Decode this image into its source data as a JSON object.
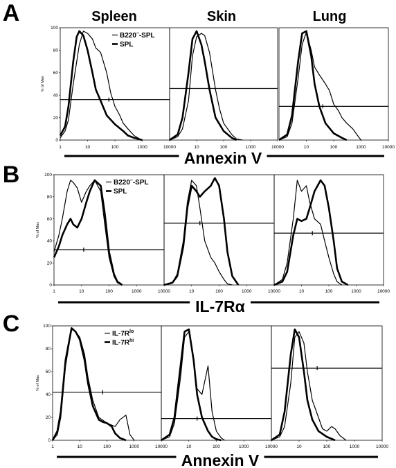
{
  "column_titles": [
    "Spleen",
    "Skin",
    "Lung"
  ],
  "chart_data": [
    {
      "panel": "A",
      "type": "line",
      "x_scale": "log",
      "xlabel": "Annexin V",
      "ylabel": "% of Max",
      "x_ticks": [
        "1",
        "10",
        "100",
        "1000",
        "10000"
      ],
      "y_ticks": [
        "0",
        "20",
        "40",
        "60",
        "80",
        "100"
      ],
      "ylim": [
        0,
        100
      ],
      "legend": [
        {
          "label": "B220",
          "sup": "–",
          "suffix": "-SPL",
          "weight": "thin"
        },
        {
          "label": "SPL",
          "weight": "thick"
        }
      ],
      "subplots": [
        {
          "title": "Spleen",
          "series": [
            {
              "name": "B220–-SPL",
              "weight": "thin",
              "x": [
                1,
                1.5,
                2,
                3,
                5,
                7,
                10,
                15,
                20,
                30,
                50,
                70,
                100,
                150,
                200,
                300,
                500,
                800,
                1000
              ],
              "y": [
                2,
                8,
                18,
                50,
                85,
                97,
                95,
                90,
                82,
                78,
                60,
                42,
                30,
                22,
                15,
                10,
                4,
                1,
                0
              ]
            },
            {
              "name": "SPL",
              "weight": "thick",
              "x": [
                1,
                1.5,
                2,
                3,
                4,
                5,
                7,
                10,
                15,
                20,
                30,
                50,
                100,
                200,
                300,
                500,
                1000
              ],
              "y": [
                4,
                12,
                30,
                70,
                92,
                97,
                93,
                80,
                60,
                45,
                35,
                22,
                14,
                8,
                4,
                2,
                0
              ]
            }
          ],
          "marker": {
            "y": 36,
            "x_from": 1,
            "x_to": 10000,
            "tick_x": 60
          }
        },
        {
          "title": "Skin",
          "series": [
            {
              "name": "B220–-SPL",
              "weight": "thin",
              "x": [
                1,
                2,
                3,
                5,
                7,
                10,
                15,
                20,
                30,
                50,
                70,
                100,
                200,
                300,
                500
              ],
              "y": [
                0,
                3,
                10,
                35,
                75,
                92,
                95,
                93,
                78,
                45,
                28,
                15,
                5,
                1,
                0
              ]
            },
            {
              "name": "SPL",
              "weight": "thick",
              "x": [
                1,
                2,
                3,
                5,
                7,
                10,
                15,
                20,
                30,
                50,
                100,
                200,
                300
              ],
              "y": [
                0,
                5,
                20,
                60,
                90,
                97,
                85,
                70,
                45,
                20,
                8,
                2,
                0
              ]
            }
          ],
          "marker": {
            "y": 46,
            "x_from": 1,
            "x_to": 10000,
            "tick_x": 30
          }
        },
        {
          "title": "Lung",
          "series": [
            {
              "name": "B220–-SPL",
              "weight": "thin",
              "x": [
                1,
                2,
                3,
                5,
                7,
                10,
                15,
                20,
                30,
                50,
                70,
                100,
                150,
                200,
                300,
                500,
                800,
                1000
              ],
              "y": [
                0,
                3,
                15,
                55,
                85,
                96,
                80,
                65,
                58,
                50,
                44,
                32,
                26,
                20,
                15,
                10,
                3,
                0
              ]
            },
            {
              "name": "SPL",
              "weight": "thick",
              "x": [
                1,
                2,
                3,
                5,
                7,
                10,
                15,
                20,
                30,
                50,
                100,
                200,
                300
              ],
              "y": [
                0,
                5,
                22,
                70,
                95,
                97,
                75,
                50,
                30,
                15,
                6,
                2,
                0
              ]
            }
          ],
          "marker": {
            "y": 30,
            "x_from": 1,
            "x_to": 10000,
            "tick_x": 40
          }
        }
      ]
    },
    {
      "panel": "B",
      "type": "line",
      "x_scale": "log",
      "xlabel": "IL-7Rα",
      "ylabel": "% of Max",
      "x_ticks": [
        "1",
        "10",
        "100",
        "1000",
        "10000"
      ],
      "y_ticks": [
        "0",
        "20",
        "40",
        "60",
        "80",
        "100"
      ],
      "ylim": [
        0,
        100
      ],
      "legend": [
        {
          "label": "B220",
          "sup": "–",
          "suffix": "-SPL",
          "weight": "thin"
        },
        {
          "label": "SPL",
          "weight": "thick"
        }
      ],
      "subplots": [
        {
          "title": "Spleen",
          "series": [
            {
              "name": "B220–-SPL",
              "weight": "thin",
              "x": [
                1,
                1.5,
                2,
                3,
                4,
                5,
                7,
                10,
                15,
                20,
                30,
                50,
                70,
                100,
                150,
                200,
                300
              ],
              "y": [
                30,
                45,
                60,
                85,
                95,
                93,
                88,
                75,
                85,
                90,
                95,
                85,
                55,
                25,
                8,
                2,
                0
              ]
            },
            {
              "name": "SPL",
              "weight": "thick",
              "x": [
                1,
                1.5,
                2,
                3,
                4,
                5,
                7,
                10,
                15,
                20,
                30,
                50,
                70,
                100,
                150,
                200,
                300
              ],
              "y": [
                25,
                35,
                45,
                55,
                60,
                55,
                52,
                60,
                75,
                85,
                95,
                90,
                65,
                30,
                10,
                3,
                0
              ]
            }
          ],
          "marker": {
            "y": 32,
            "x_from": 1,
            "x_to": 10000,
            "tick_x": 12
          }
        },
        {
          "title": "Skin",
          "series": [
            {
              "name": "B220–-SPL",
              "weight": "thin",
              "x": [
                1,
                2,
                3,
                5,
                7,
                10,
                15,
                20,
                30,
                50,
                70,
                100,
                150,
                200,
                300
              ],
              "y": [
                0,
                2,
                10,
                40,
                75,
                95,
                90,
                70,
                40,
                25,
                20,
                12,
                5,
                1,
                0
              ]
            },
            {
              "name": "SPL",
              "weight": "thick",
              "x": [
                1,
                2,
                3,
                5,
                7,
                10,
                15,
                20,
                30,
                50,
                70,
                100,
                150,
                200,
                300,
                500
              ],
              "y": [
                0,
                2,
                8,
                35,
                70,
                90,
                85,
                80,
                85,
                90,
                97,
                90,
                60,
                30,
                8,
                0
              ]
            }
          ],
          "marker": {
            "y": 56,
            "x_from": 1,
            "x_to": 10000,
            "tick_x": 20
          }
        },
        {
          "title": "Lung",
          "series": [
            {
              "name": "B220–-SPL",
              "weight": "thin",
              "x": [
                1,
                2,
                3,
                5,
                7,
                10,
                15,
                20,
                30,
                50,
                70,
                100,
                150,
                200,
                300
              ],
              "y": [
                0,
                5,
                20,
                60,
                95,
                85,
                90,
                75,
                60,
                55,
                40,
                25,
                10,
                3,
                0
              ]
            },
            {
              "name": "SPL",
              "weight": "thick",
              "x": [
                1,
                2,
                3,
                5,
                7,
                10,
                15,
                20,
                30,
                50,
                70,
                100,
                150,
                200,
                300,
                500
              ],
              "y": [
                0,
                3,
                12,
                45,
                60,
                58,
                60,
                70,
                85,
                95,
                90,
                70,
                40,
                15,
                3,
                0
              ]
            }
          ],
          "marker": {
            "y": 47,
            "x_from": 1,
            "x_to": 10000,
            "tick_x": 25
          }
        }
      ]
    },
    {
      "panel": "C",
      "type": "line",
      "x_scale": "log",
      "xlabel": "Annexin V",
      "ylabel": "% of Max",
      "x_ticks": [
        "1",
        "10",
        "100",
        "1000",
        "10000"
      ],
      "y_ticks": [
        "0",
        "20",
        "40",
        "60",
        "80",
        "100"
      ],
      "ylim": [
        0,
        100
      ],
      "legend": [
        {
          "label": "IL-7R",
          "sup": "lo",
          "weight": "thin"
        },
        {
          "label": "IL-7R",
          "sup": "hi",
          "weight": "thick"
        }
      ],
      "subplots": [
        {
          "title": "Spleen",
          "series": [
            {
              "name": "IL-7Rlo",
              "weight": "thin",
              "x": [
                1,
                1.5,
                2,
                3,
                5,
                7,
                10,
                15,
                20,
                30,
                50,
                100,
                200,
                300,
                500,
                700,
                1000
              ],
              "y": [
                0,
                5,
                20,
                65,
                97,
                95,
                90,
                75,
                55,
                35,
                20,
                15,
                12,
                18,
                22,
                5,
                0
              ]
            },
            {
              "name": "IL-7Rhi",
              "weight": "thick",
              "x": [
                1,
                1.5,
                2,
                3,
                5,
                7,
                10,
                15,
                20,
                30,
                50,
                70,
                100,
                150,
                200,
                300,
                500
              ],
              "y": [
                0,
                8,
                25,
                70,
                98,
                95,
                88,
                70,
                50,
                30,
                18,
                16,
                15,
                12,
                6,
                2,
                0
              ]
            }
          ],
          "marker": {
            "y": 42,
            "x_from": 1,
            "x_to": 10000,
            "tick_x": 70
          }
        },
        {
          "title": "Skin",
          "series": [
            {
              "name": "IL-7Rlo",
              "weight": "thin",
              "x": [
                1,
                2,
                3,
                5,
                7,
                10,
                15,
                20,
                30,
                50,
                70,
                100,
                150,
                200
              ],
              "y": [
                0,
                3,
                15,
                55,
                90,
                95,
                70,
                45,
                40,
                65,
                25,
                8,
                2,
                0
              ]
            },
            {
              "name": "IL-7Rhi",
              "weight": "thick",
              "x": [
                1,
                2,
                3,
                5,
                7,
                10,
                15,
                20,
                30,
                50,
                70,
                100,
                150
              ],
              "y": [
                0,
                5,
                20,
                65,
                95,
                97,
                70,
                40,
                20,
                8,
                3,
                1,
                0
              ]
            }
          ],
          "marker": {
            "y": 19,
            "x_from": 1,
            "x_to": 10000,
            "tick_x": 20
          }
        },
        {
          "title": "Lung",
          "series": [
            {
              "name": "IL-7Rlo",
              "weight": "thin",
              "x": [
                1,
                2,
                3,
                5,
                7,
                10,
                15,
                20,
                30,
                50,
                70,
                100,
                150,
                200,
                300,
                500
              ],
              "y": [
                0,
                3,
                12,
                50,
                90,
                95,
                85,
                60,
                35,
                20,
                10,
                8,
                12,
                10,
                4,
                0
              ]
            },
            {
              "name": "IL-7Rhi",
              "weight": "thick",
              "x": [
                1,
                2,
                3,
                5,
                7,
                10,
                15,
                20,
                30,
                50,
                100,
                200
              ],
              "y": [
                0,
                5,
                25,
                75,
                97,
                90,
                60,
                35,
                18,
                8,
                3,
                0
              ]
            }
          ],
          "marker": {
            "y": 63,
            "x_from": 1,
            "x_to": 10000,
            "tick_x": 45
          }
        }
      ]
    }
  ]
}
